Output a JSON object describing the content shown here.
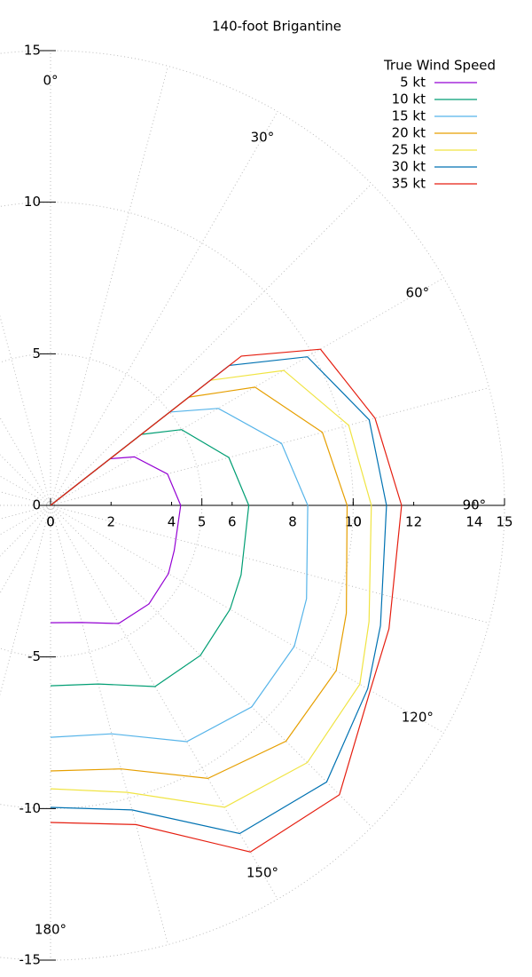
{
  "chart_data": {
    "type": "polar",
    "title": "140-foot Brigantine",
    "legend_title": "True Wind Speed",
    "legend": "top-right",
    "grid": true,
    "angles": [
      0,
      52,
      60,
      75,
      90,
      110,
      120,
      135,
      150,
      165,
      180
    ],
    "series": [
      {
        "name": "5 kt",
        "color": "#9400d3",
        "values": [
          0,
          2.5,
          3.2,
          4.0,
          4.3,
          4.35,
          4.5,
          4.6,
          4.5,
          4.0,
          3.87
        ]
      },
      {
        "name": "10 kt",
        "color": "#009e73",
        "values": [
          0,
          3.8,
          5.0,
          6.1,
          6.55,
          6.7,
          6.85,
          7.0,
          6.9,
          6.1,
          5.95
        ]
      },
      {
        "name": "15 kt",
        "color": "#56b4e9",
        "values": [
          0,
          5.0,
          6.4,
          7.9,
          8.5,
          9.0,
          9.3,
          9.4,
          9.0,
          7.8,
          7.65
        ]
      },
      {
        "name": "20 kt",
        "color": "#e69f00",
        "values": [
          0,
          5.8,
          7.8,
          9.3,
          9.8,
          10.4,
          10.9,
          11.0,
          10.4,
          9.0,
          8.76
        ]
      },
      {
        "name": "25 kt",
        "color": "#f0e442",
        "values": [
          0,
          6.7,
          8.9,
          10.2,
          10.6,
          11.2,
          11.8,
          12.0,
          11.5,
          9.8,
          9.35
        ]
      },
      {
        "name": "30 kt",
        "color": "#0072b2",
        "values": [
          0,
          7.5,
          9.8,
          10.9,
          11.1,
          11.6,
          12.1,
          12.9,
          12.5,
          10.4,
          9.96
        ]
      },
      {
        "name": "35 kt",
        "color": "#e51e10",
        "values": [
          0,
          8.0,
          10.3,
          11.1,
          11.6,
          11.9,
          12.2,
          13.5,
          13.2,
          10.9,
          10.46
        ]
      }
    ],
    "xlim": [
      0,
      15
    ],
    "xticks": [
      0,
      5,
      10,
      15
    ],
    "rticks": [
      0,
      2,
      4,
      6,
      8,
      10,
      12,
      14
    ],
    "ylim": [
      -15,
      15
    ],
    "yticks": [
      15,
      10,
      5,
      0,
      -5,
      -10,
      -15
    ],
    "angle_ticks": [
      {
        "value": 0,
        "label": "0°"
      },
      {
        "value": 30,
        "label": "30°"
      },
      {
        "value": 60,
        "label": "60°"
      },
      {
        "value": 90,
        "label": "90°"
      },
      {
        "value": 120,
        "label": "120°"
      },
      {
        "value": 150,
        "label": "150°"
      },
      {
        "value": 180,
        "label": "180°"
      }
    ]
  }
}
